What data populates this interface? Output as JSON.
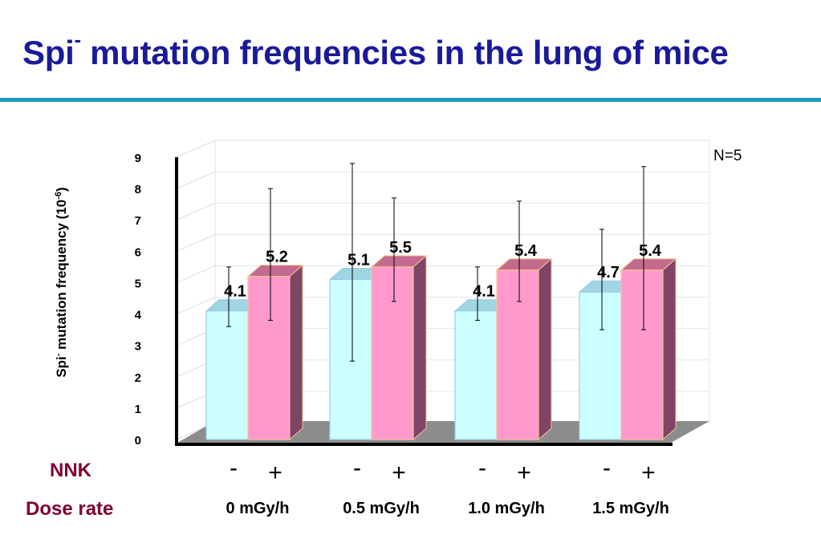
{
  "title": {
    "main": "Spi",
    "superscript": "-",
    "rest": " mutation frequencies in the lung of mice"
  },
  "chart_data": {
    "type": "bar",
    "ylabel": {
      "pre": "Spi",
      "pre_sup": "-",
      "mid": " mutation frequency (10",
      "mid_sup": "-6",
      "post": ")"
    },
    "ylim": [
      0,
      9
    ],
    "yticks": [
      "0",
      "1",
      "2",
      "3",
      "4",
      "5",
      "6",
      "7",
      "8",
      "9"
    ],
    "annotation": "N=5",
    "grid": true,
    "row_labels": {
      "nnk": "NNK",
      "dose": "Dose rate"
    },
    "groups": [
      {
        "label": "0 mGy/h",
        "bars": [
          {
            "nnk": "-",
            "value": 4.1,
            "label": "4.1",
            "err_low": 3.6,
            "err_high": 5.5
          },
          {
            "nnk": "+",
            "value": 5.2,
            "label": "5.2",
            "err_low": 3.8,
            "err_high": 8.0
          }
        ]
      },
      {
        "label": "0.5 mGy/h",
        "bars": [
          {
            "nnk": "-",
            "value": 5.1,
            "label": "5.1",
            "err_low": 2.5,
            "err_high": 8.8
          },
          {
            "nnk": "+",
            "value": 5.5,
            "label": "5.5",
            "err_low": 4.4,
            "err_high": 7.7
          }
        ]
      },
      {
        "label": "1.0 mGy/h",
        "bars": [
          {
            "nnk": "-",
            "value": 4.1,
            "label": "4.1",
            "err_low": 3.8,
            "err_high": 5.5
          },
          {
            "nnk": "+",
            "value": 5.4,
            "label": "5.4",
            "err_low": 4.4,
            "err_high": 7.6
          }
        ]
      },
      {
        "label": "1.5 mGy/h",
        "bars": [
          {
            "nnk": "-",
            "value": 4.7,
            "label": "4.7",
            "err_low": 3.5,
            "err_high": 6.7
          },
          {
            "nnk": "+",
            "value": 5.4,
            "label": "5.4",
            "err_low": 3.5,
            "err_high": 8.7
          }
        ]
      }
    ],
    "colors": {
      "minus_front": "#ccffff",
      "minus_side": "#a3dde8",
      "minus_top": "#9fd6e2",
      "minus_edge": "#99ccee",
      "plus_front": "#ff99cc",
      "plus_side": "#7f4466",
      "plus_top": "#c46a8f",
      "plus_edge": "#f2c58f",
      "floor": "#8c8c8c",
      "title": "#1a1a9a",
      "row_label": "#800033",
      "rule": "#1f9bc4"
    }
  }
}
